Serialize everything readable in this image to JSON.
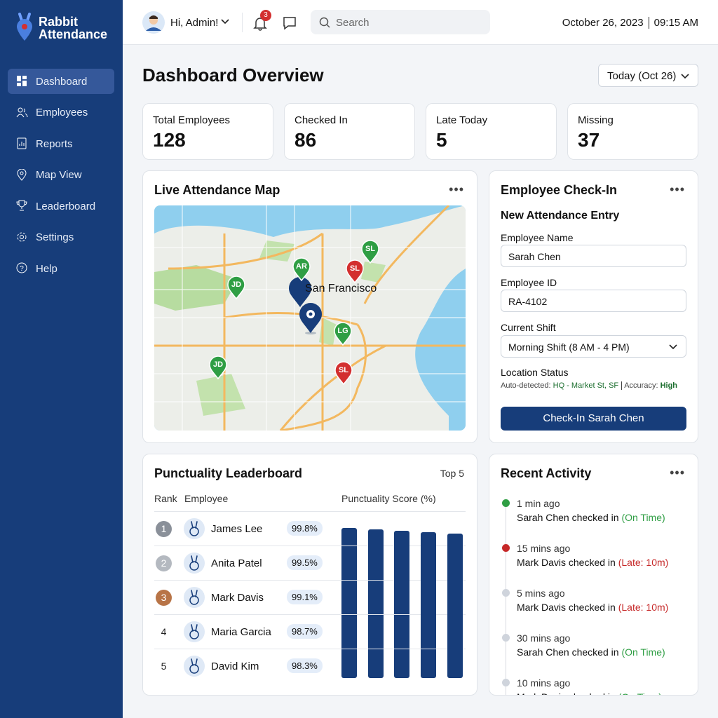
{
  "brand": {
    "line1": "Rabbit",
    "line2": "Attendance"
  },
  "nav": [
    "Dashboard",
    "Employees",
    "Reports",
    "Map View",
    "Leaderboard",
    "Settings",
    "Help"
  ],
  "header": {
    "greeting": "Hi, Admin!",
    "notifications": 3,
    "search": "Search",
    "date": "October 26, 2023",
    "time": "09:15 AM"
  },
  "page": {
    "title": "Dashboard Overview",
    "date_filter": "Today (Oct 26)"
  },
  "stats": [
    {
      "label": "Total Employees",
      "value": 128
    },
    {
      "label": "Checked In",
      "value": 86
    },
    {
      "label": "Late Today",
      "value": 5
    },
    {
      "label": "Missing",
      "value": 37
    }
  ],
  "map": {
    "title": "Live Attendance Map",
    "city": "San Francisco",
    "markers": [
      {
        "initials": "SL",
        "color": "#2f9e44"
      },
      {
        "initials": "SL",
        "color": "#d32f2f"
      },
      {
        "initials": "AR",
        "color": "#2f9e44"
      },
      {
        "initials": "JD",
        "color": "#2f9e44"
      },
      {
        "initials": "LG",
        "color": "#2f9e44"
      },
      {
        "initials": "JD",
        "color": "#2f9e44"
      },
      {
        "initials": "SL",
        "color": "#d32f2f"
      }
    ]
  },
  "checkin": {
    "title": "Employee Check-In",
    "subtitle": "New Attendance Entry",
    "name_label": "Employee Name",
    "name": "Sarah Chen",
    "id_label": "Employee ID",
    "id": "RA-4102",
    "shift_label": "Current Shift",
    "shift": "Morning Shift (8 AM - 4 PM)",
    "location_label": "Location Status",
    "auto_label": "Auto-detected:",
    "auto_value": "HQ - Market St, SF",
    "accuracy_label": "Accuracy:",
    "accuracy_value": "High",
    "button": "Check-In Sarah Chen"
  },
  "leaderboard": {
    "title": "Punctuality Leaderboard",
    "filter": "Top 5",
    "columns": [
      "Rank",
      "Employee",
      "Punctuality Score (%)"
    ],
    "color": "#173d7a",
    "rows": [
      {
        "rank": 1,
        "name": "James Lee",
        "score": 99.8,
        "score_label": "99.8%"
      },
      {
        "rank": 2,
        "name": "Anita Patel",
        "score": 99.5,
        "score_label": "99.5%"
      },
      {
        "rank": 3,
        "name": "Mark Davis",
        "score": 99.1,
        "score_label": "99.1%"
      },
      {
        "rank": 4,
        "name": "Maria Garcia",
        "score": 98.7,
        "score_label": "98.7%"
      },
      {
        "rank": 5,
        "name": "David Kim",
        "score": 98.3,
        "score_label": "98.3%"
      }
    ]
  },
  "activity": {
    "title": "Recent Activity",
    "items": [
      {
        "time": "1 min ago",
        "text": "Sarah Chen checked in",
        "status": "(On Time)",
        "status_color": "#2f9e44",
        "dot_color": "#2f9e44"
      },
      {
        "time": "15 mins ago",
        "text": "Mark Davis checked in",
        "status": "(Late: 10m)",
        "status_color": "#c62828",
        "dot_color": "#c62828"
      },
      {
        "time": "5 mins ago",
        "text": "Mark Davis checked in",
        "status": "(Late: 10m)",
        "status_color": "#c62828",
        "dot_color": "#cfd4dc"
      },
      {
        "time": "30 mins ago",
        "text": "Sarah Chen checked in",
        "status": "(On Time)",
        "status_color": "#2f9e44",
        "dot_color": "#cfd4dc"
      },
      {
        "time": "10 mins ago",
        "text": "Mark Davis checked in",
        "status": "(On Time)",
        "status_color": "#2f9e44",
        "dot_color": "#cfd4dc"
      }
    ]
  }
}
